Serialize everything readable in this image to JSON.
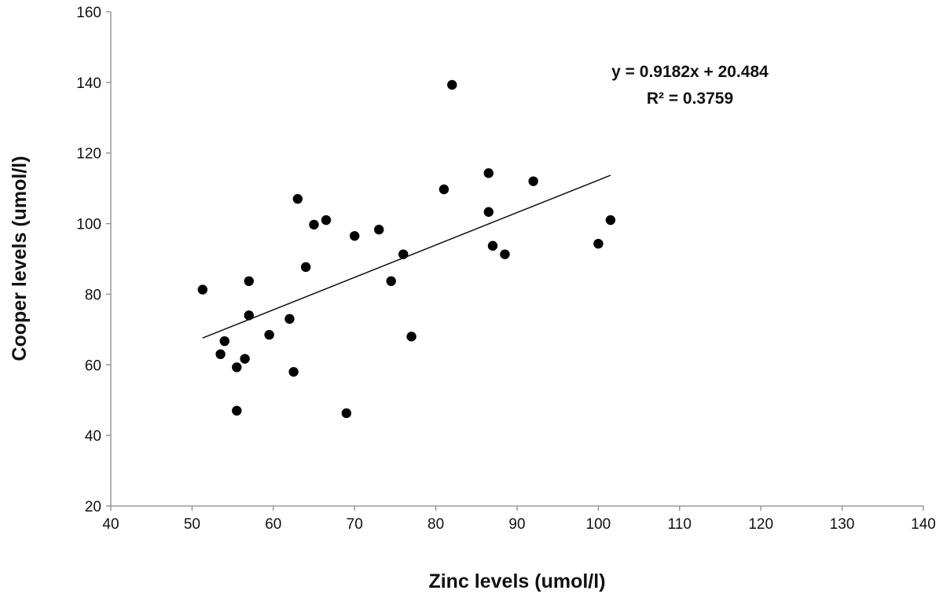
{
  "chart_data": {
    "type": "scatter",
    "xlabel": "Zinc levels (umol/l)",
    "ylabel": "Cooper levels (umol/l)",
    "xlim": [
      40,
      140
    ],
    "ylim": [
      20,
      160
    ],
    "x_ticks": [
      40,
      50,
      60,
      70,
      80,
      90,
      100,
      110,
      120,
      130,
      140
    ],
    "y_ticks": [
      20,
      40,
      60,
      80,
      100,
      120,
      140,
      160
    ],
    "grid": false,
    "points": [
      {
        "x": 51.3,
        "y": 81.3
      },
      {
        "x": 53.5,
        "y": 63.0
      },
      {
        "x": 54.0,
        "y": 66.7
      },
      {
        "x": 55.5,
        "y": 59.3
      },
      {
        "x": 55.5,
        "y": 47.0
      },
      {
        "x": 56.5,
        "y": 61.7
      },
      {
        "x": 57.0,
        "y": 83.7
      },
      {
        "x": 57.0,
        "y": 74.0
      },
      {
        "x": 59.5,
        "y": 68.5
      },
      {
        "x": 62.0,
        "y": 73.0
      },
      {
        "x": 62.5,
        "y": 58.0
      },
      {
        "x": 63.0,
        "y": 107.0
      },
      {
        "x": 64.0,
        "y": 87.7
      },
      {
        "x": 65.0,
        "y": 99.7
      },
      {
        "x": 66.5,
        "y": 101.0
      },
      {
        "x": 69.0,
        "y": 46.3
      },
      {
        "x": 70.0,
        "y": 96.5
      },
      {
        "x": 73.0,
        "y": 98.3
      },
      {
        "x": 74.5,
        "y": 83.7
      },
      {
        "x": 76.0,
        "y": 91.3
      },
      {
        "x": 77.0,
        "y": 68.0
      },
      {
        "x": 81.0,
        "y": 109.7
      },
      {
        "x": 82.0,
        "y": 139.3
      },
      {
        "x": 86.5,
        "y": 114.3
      },
      {
        "x": 86.5,
        "y": 103.3
      },
      {
        "x": 87.0,
        "y": 93.7
      },
      {
        "x": 88.5,
        "y": 91.3
      },
      {
        "x": 92.0,
        "y": 112.0
      },
      {
        "x": 100.0,
        "y": 94.3
      },
      {
        "x": 101.5,
        "y": 101.0
      }
    ],
    "trendline": {
      "slope": 0.9182,
      "intercept": 20.484,
      "x_range": [
        51.3,
        101.5
      ],
      "equation": "y = 0.9182x + 20.484",
      "r_squared": "R² = 0.3759"
    }
  }
}
